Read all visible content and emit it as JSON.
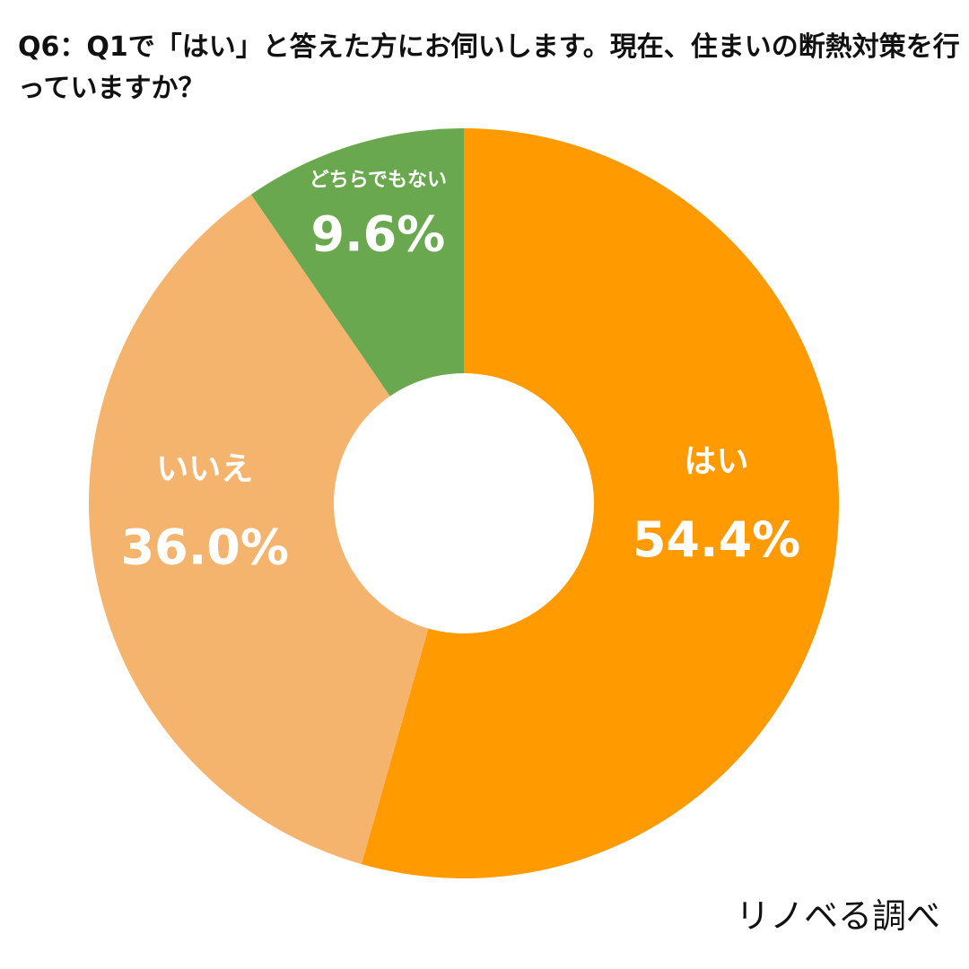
{
  "chart_data": {
    "type": "pie",
    "donut": true,
    "title": "Q6：Q1で「はい」と答えた方にお伺いします。現在、住まいの断熱対策を行っていますか？",
    "start": "12 o'clock",
    "direction": "clockwise",
    "slices": [
      {
        "label": "はい",
        "value": 54.4,
        "value_label": "54.4%",
        "color": "#ff9a00"
      },
      {
        "label": "いいえ",
        "value": 36.0,
        "value_label": "36.0%",
        "color": "#f5b46e"
      },
      {
        "label": "どちらでもない",
        "value": 9.6,
        "value_label": "9.6%",
        "color": "#6aa84f"
      }
    ]
  },
  "source": "リノベる調べ",
  "colors": {
    "label_text": "#ffffff",
    "background": "#ffffff"
  }
}
